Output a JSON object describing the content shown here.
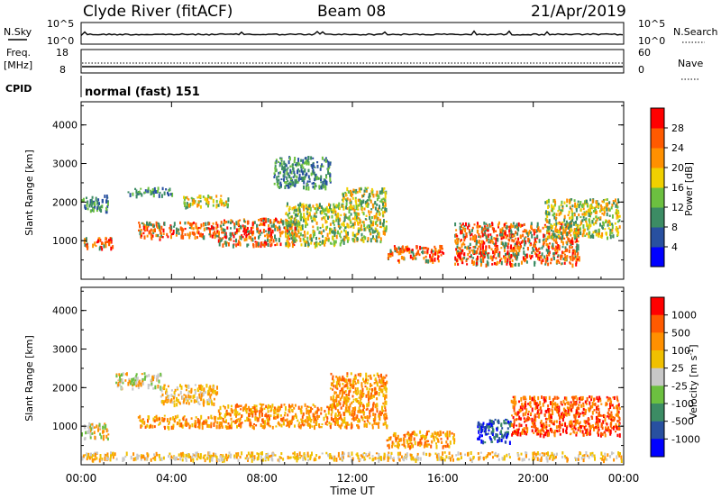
{
  "header": {
    "station": "Clyde River (fitACF)",
    "beam": "Beam 08",
    "date": "21/Apr/2019"
  },
  "strips": {
    "nsky_label": "N.Sky",
    "nsky_ticks": [
      "10^5",
      "10^0"
    ],
    "nsearch_label": "N.Search",
    "nsearch_ticks": [
      "10^5",
      "10^0"
    ],
    "freq_label": "Freq.",
    "freq_unit": "[MHz]",
    "freq_ticks": [
      "18",
      "8"
    ],
    "nave_label": "Nave",
    "nave_ticks": [
      "60",
      "0"
    ],
    "cpid_label": "CPID",
    "cpid_value": "normal (fast) 151"
  },
  "chart_data": [
    {
      "type": "heatmap",
      "name": "power",
      "ylabel": "Slant Range [km]",
      "xlabel": "",
      "y_ticks": [
        "4000",
        "3000",
        "2000",
        "1000"
      ],
      "x_ticks": [
        "00:00",
        "04:00",
        "08:00",
        "12:00",
        "16:00",
        "20:00",
        "00:00"
      ],
      "colorbar_label": "Power [dB]",
      "colorbar_ticks": [
        "28",
        "24",
        "20",
        "16",
        "12",
        "8",
        "4"
      ],
      "colorbar_colors": [
        "#0000ff",
        "#2850a0",
        "#3c8c64",
        "#6cc040",
        "#f0d000",
        "#ff9000",
        "#ff5a00",
        "#ff0000"
      ],
      "regions": [
        {
          "t0": 0.0,
          "t1": 1.2,
          "r0": 1800,
          "r1": 2200,
          "level": "low"
        },
        {
          "t0": 0.1,
          "t1": 1.4,
          "r0": 800,
          "r1": 1100,
          "level": "high"
        },
        {
          "t0": 2.0,
          "t1": 4.0,
          "r0": 2200,
          "r1": 2400,
          "level": "low"
        },
        {
          "t0": 2.5,
          "t1": 6.0,
          "r0": 1100,
          "r1": 1500,
          "level": "high"
        },
        {
          "t0": 4.5,
          "t1": 6.5,
          "r0": 1900,
          "r1": 2200,
          "level": "mid"
        },
        {
          "t0": 6.0,
          "t1": 9.5,
          "r0": 900,
          "r1": 1600,
          "level": "high"
        },
        {
          "t0": 8.5,
          "t1": 11.0,
          "r0": 2400,
          "r1": 3200,
          "level": "low"
        },
        {
          "t0": 9.0,
          "t1": 11.5,
          "r0": 900,
          "r1": 2000,
          "level": "mid"
        },
        {
          "t0": 11.5,
          "t1": 13.5,
          "r0": 1000,
          "r1": 2400,
          "level": "mid"
        },
        {
          "t0": 13.5,
          "t1": 16.0,
          "r0": 500,
          "r1": 900,
          "level": "high"
        },
        {
          "t0": 16.5,
          "t1": 22.0,
          "r0": 400,
          "r1": 1500,
          "level": "high"
        },
        {
          "t0": 20.5,
          "t1": 23.8,
          "r0": 1100,
          "r1": 2100,
          "level": "mid"
        }
      ]
    },
    {
      "type": "heatmap",
      "name": "velocity",
      "ylabel": "Slant Range [km]",
      "xlabel": "Time UT",
      "y_ticks": [
        "4000",
        "3000",
        "2000",
        "1000"
      ],
      "x_ticks": [
        "00:00",
        "04:00",
        "08:00",
        "12:00",
        "16:00",
        "20:00",
        "00:00"
      ],
      "colorbar_label": "Velocity [m s",
      "colorbar_label_sup": "-1",
      "colorbar_label_end": "]",
      "colorbar_ticks": [
        "1000",
        "500",
        "100",
        "25",
        "-25",
        "-100",
        "-500",
        "-1000"
      ],
      "colorbar_colors": [
        "#ff0000",
        "#ff5a00",
        "#ff9000",
        "#f0c000",
        "#c8c8c8",
        "#6cc040",
        "#3c8c64",
        "#2850a0",
        "#0000ff"
      ],
      "regions": [
        {
          "t0": 0.0,
          "t1": 1.2,
          "r0": 700,
          "r1": 1100,
          "level": "gray"
        },
        {
          "t0": 1.5,
          "t1": 3.5,
          "r0": 2000,
          "r1": 2400,
          "level": "gray"
        },
        {
          "t0": 2.5,
          "t1": 6.0,
          "r0": 1000,
          "r1": 1300,
          "level": "orange"
        },
        {
          "t0": 3.5,
          "t1": 6.0,
          "r0": 1600,
          "r1": 2100,
          "level": "gold"
        },
        {
          "t0": 6.0,
          "t1": 11.0,
          "r0": 1000,
          "r1": 1600,
          "level": "orange"
        },
        {
          "t0": 11.0,
          "t1": 13.5,
          "r0": 1000,
          "r1": 2400,
          "level": "orange"
        },
        {
          "t0": 13.5,
          "t1": 16.5,
          "r0": 500,
          "r1": 900,
          "level": "orange"
        },
        {
          "t0": 17.5,
          "t1": 19.0,
          "r0": 600,
          "r1": 1200,
          "level": "blue"
        },
        {
          "t0": 19.0,
          "t1": 23.8,
          "r0": 800,
          "r1": 1800,
          "level": "red"
        },
        {
          "t0": 0.0,
          "t1": 23.9,
          "r0": 150,
          "r1": 350,
          "level": "gold"
        }
      ]
    }
  ]
}
